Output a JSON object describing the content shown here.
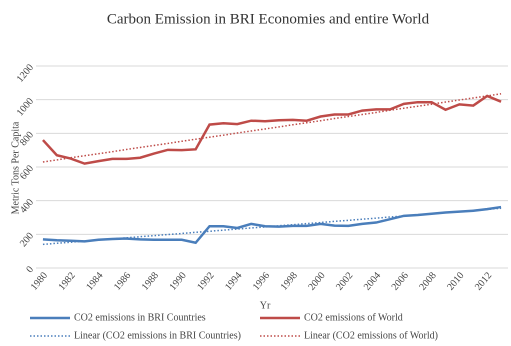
{
  "chart_data": {
    "type": "line",
    "title": "Carbon Emission in BRI Economies and entire World",
    "x_label": "Yr",
    "y_label": "Metric Tons Per Capita",
    "categories": [
      "1980",
      null,
      "1982",
      null,
      "1984",
      null,
      "1986",
      null,
      "1988",
      null,
      "1990",
      null,
      "1992",
      null,
      "1994",
      null,
      "1996",
      null,
      "1998",
      null,
      "2000",
      null,
      "2002",
      null,
      "2004",
      null,
      "2006",
      null,
      "2008",
      null,
      "2010",
      null,
      "2012",
      null
    ],
    "series": [
      {
        "name": "CO2 emissions in BRI Countries",
        "color": "#4a7ebb",
        "style": "solid",
        "values": [
          170,
          165,
          162,
          158,
          168,
          172,
          175,
          170,
          168,
          168,
          168,
          150,
          248,
          248,
          238,
          262,
          248,
          246,
          250,
          250,
          262,
          252,
          250,
          262,
          270,
          290,
          310,
          315,
          322,
          330,
          335,
          340,
          350,
          362
        ]
      },
      {
        "name": "CO2 emissions of World",
        "color": "#be4b48",
        "style": "solid",
        "values": [
          760,
          670,
          650,
          620,
          635,
          648,
          648,
          655,
          680,
          702,
          700,
          705,
          852,
          860,
          855,
          875,
          872,
          878,
          880,
          875,
          900,
          912,
          912,
          935,
          942,
          942,
          975,
          985,
          985,
          940,
          972,
          965,
          1022,
          988
        ]
      },
      {
        "name": "Linear (CO2 emissions in BRI Countries)",
        "color": "#4a7ebb",
        "style": "dotted",
        "values": [
          140,
          147,
          153,
          160,
          166,
          173,
          179,
          186,
          192,
          199,
          205,
          212,
          218,
          225,
          231,
          238,
          244,
          251,
          257,
          264,
          270,
          277,
          283,
          290,
          296,
          303,
          309,
          316,
          322,
          329,
          335,
          342,
          348,
          355
        ]
      },
      {
        "name": "Linear (CO2 emissions of World)",
        "color": "#be4b48",
        "style": "dotted",
        "values": [
          630,
          642,
          655,
          667,
          679,
          691,
          704,
          716,
          728,
          740,
          753,
          765,
          777,
          789,
          802,
          814,
          826,
          838,
          851,
          863,
          875,
          888,
          900,
          912,
          924,
          937,
          949,
          961,
          973,
          986,
          998,
          1010,
          1022,
          1035
        ]
      }
    ],
    "ylim": [
      0,
      1200
    ],
    "yticks": [
      0,
      200,
      400,
      600,
      800,
      1000,
      1200
    ],
    "grid": true
  }
}
